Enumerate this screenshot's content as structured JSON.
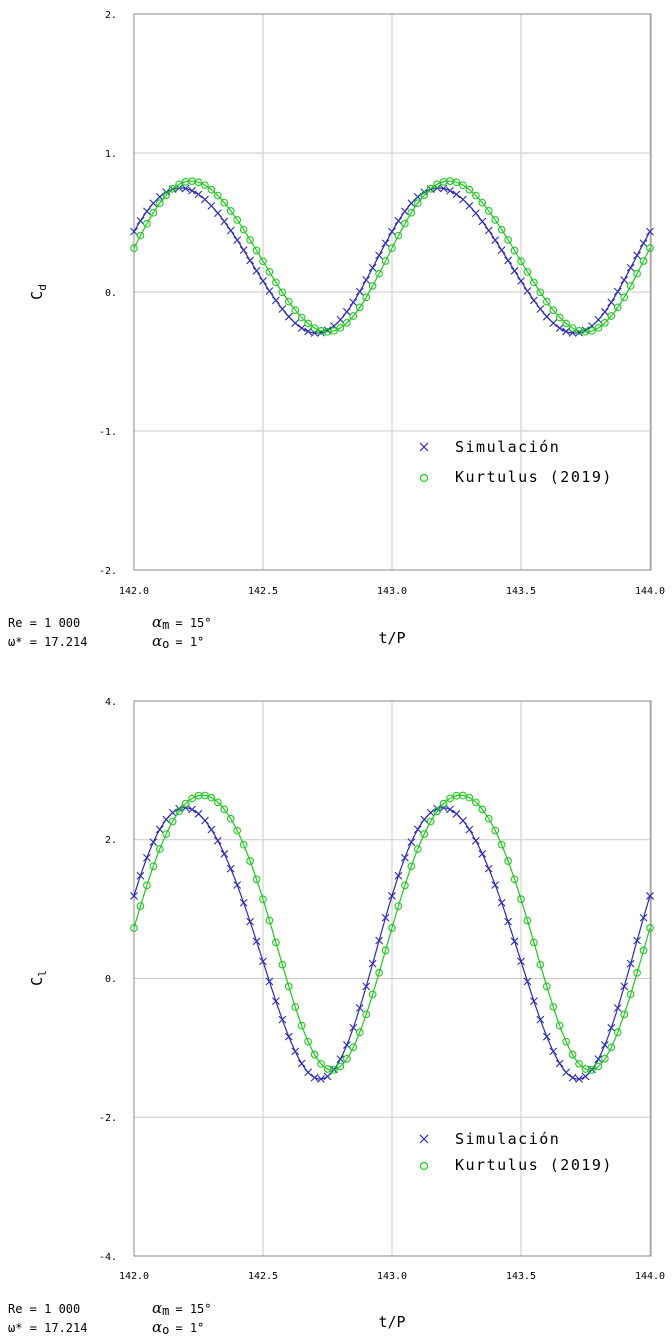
{
  "chart_data": [
    {
      "type": "line",
      "xlabel": "t/P",
      "ylabel": "C_d",
      "ylabel_main": "C",
      "ylabel_sub": "d",
      "xlim": [
        142.0,
        144.0
      ],
      "ylim": [
        -2.0,
        2.0
      ],
      "xticks": [
        "142.0",
        "142.5",
        "143.0",
        "143.5",
        "144.0"
      ],
      "yticks": [
        "2.",
        "1.",
        "0.",
        "-1.",
        "-2."
      ],
      "grid": true,
      "legend_position": "bottom-right",
      "series": [
        {
          "name": "Simulación",
          "marker": "x",
          "color": "#2b2bb3",
          "mean": 0.235,
          "amp1": 0.52,
          "phase1_deg": 20,
          "amp2": 0.025,
          "phase2_deg": 60
        },
        {
          "name": "Kurtulus (2019)",
          "marker": "o",
          "color": "#1ec81e",
          "mean": 0.26,
          "amp1": 0.54,
          "phase1_deg": 5,
          "amp2": 0.025,
          "phase2_deg": 20
        }
      ]
    },
    {
      "type": "line",
      "xlabel": "t/P",
      "ylabel": "C_l",
      "ylabel_main": "C",
      "ylabel_sub": "l",
      "xlim": [
        142.0,
        144.0
      ],
      "ylim": [
        -4.0,
        4.0
      ],
      "xticks": [
        "142.0",
        "142.5",
        "143.0",
        "143.5",
        "144.0"
      ],
      "yticks": [
        "4.",
        "2.",
        "0.",
        "-2.",
        "-4."
      ],
      "grid": true,
      "legend_position": "bottom-right",
      "series": [
        {
          "name": "Simulación",
          "marker": "x",
          "color": "#2b2bb3",
          "mean": 0.6,
          "amp1": 1.95,
          "phase1_deg": 14,
          "amp2": 0.12,
          "phase2_deg": 80
        },
        {
          "name": "Kurtulus (2019)",
          "marker": "o",
          "color": "#1ec81e",
          "mean": 0.8,
          "amp1": 1.98,
          "phase1_deg": -6,
          "amp2": 0.14,
          "phase2_deg": 75
        }
      ]
    }
  ],
  "params": {
    "re": "Re = 1 000",
    "omega_symbol": "ω*",
    "omega_value": "= 17.214",
    "alpha_m_symbol": "α",
    "alpha_m_sub": "m",
    "alpha_m_value": "= 15°",
    "alpha_o_symbol": "α",
    "alpha_o_sub": "o",
    "alpha_o_value": "= 1°"
  }
}
